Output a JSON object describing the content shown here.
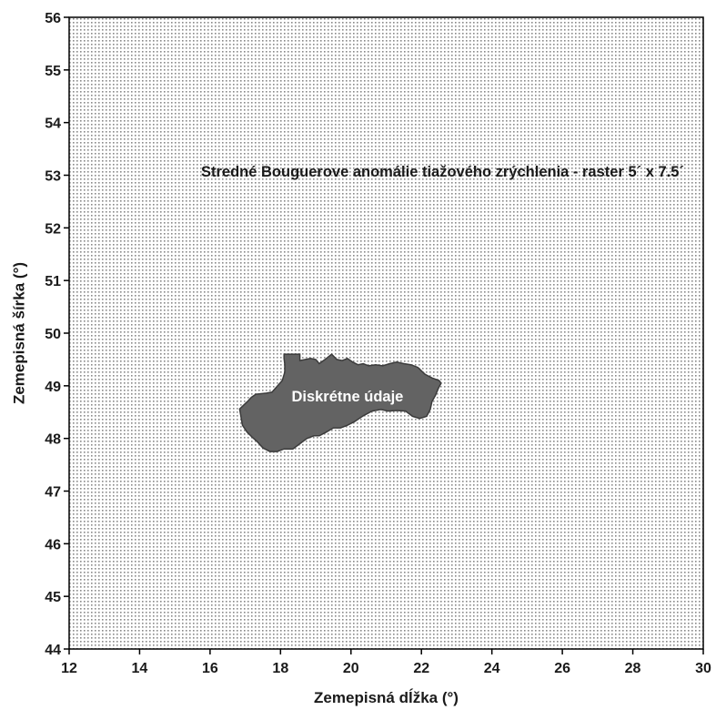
{
  "chart_data": {
    "type": "map",
    "xlabel": "Zemepisná dĺžka (°)",
    "ylabel": "Zemepisná šírka (°)",
    "xlim": [
      12,
      30
    ],
    "ylim": [
      44,
      56
    ],
    "x_ticks": [
      "12",
      "14",
      "16",
      "18",
      "20",
      "22",
      "24",
      "26",
      "28",
      "30"
    ],
    "y_ticks": [
      "44",
      "45",
      "46",
      "47",
      "48",
      "49",
      "50",
      "51",
      "52",
      "53",
      "54",
      "55",
      "56"
    ],
    "grid": "dotted raster fill over whole extent",
    "annotations": {
      "raster": "Stredné Bouguerove anomálie tiažového zrýchlenia - raster 5´ x 7.5´",
      "region": "Diskrétne údaje"
    },
    "raster_label_position": [
      22.6,
      53.05
    ],
    "region_label_position": [
      19.9,
      48.78
    ],
    "region_outline": [
      [
        16.84,
        48.56
      ],
      [
        16.95,
        48.63
      ],
      [
        17.06,
        48.7
      ],
      [
        17.17,
        48.78
      ],
      [
        17.3,
        48.84
      ],
      [
        17.45,
        48.85
      ],
      [
        17.6,
        48.86
      ],
      [
        17.76,
        48.88
      ],
      [
        17.92,
        49.0
      ],
      [
        18.05,
        49.1
      ],
      [
        18.12,
        49.26
      ],
      [
        18.12,
        49.41
      ],
      [
        18.1,
        49.52
      ],
      [
        18.1,
        49.6
      ],
      [
        18.55,
        49.6
      ],
      [
        18.55,
        49.48
      ],
      [
        18.85,
        49.52
      ],
      [
        19.0,
        49.5
      ],
      [
        19.1,
        49.42
      ],
      [
        19.3,
        49.52
      ],
      [
        19.45,
        49.6
      ],
      [
        19.6,
        49.5
      ],
      [
        19.75,
        49.48
      ],
      [
        19.9,
        49.52
      ],
      [
        20.05,
        49.45
      ],
      [
        20.2,
        49.4
      ],
      [
        20.35,
        49.42
      ],
      [
        20.5,
        49.38
      ],
      [
        20.7,
        49.4
      ],
      [
        20.9,
        49.38
      ],
      [
        21.1,
        49.42
      ],
      [
        21.3,
        49.45
      ],
      [
        21.5,
        49.42
      ],
      [
        21.7,
        49.4
      ],
      [
        21.9,
        49.35
      ],
      [
        22.1,
        49.22
      ],
      [
        22.3,
        49.15
      ],
      [
        22.5,
        49.1
      ],
      [
        22.56,
        49.05
      ],
      [
        22.48,
        48.95
      ],
      [
        22.4,
        48.82
      ],
      [
        22.3,
        48.7
      ],
      [
        22.25,
        48.55
      ],
      [
        22.15,
        48.42
      ],
      [
        21.95,
        48.38
      ],
      [
        21.75,
        48.42
      ],
      [
        21.55,
        48.52
      ],
      [
        21.3,
        48.53
      ],
      [
        21.05,
        48.52
      ],
      [
        20.85,
        48.55
      ],
      [
        20.6,
        48.52
      ],
      [
        20.35,
        48.43
      ],
      [
        20.1,
        48.32
      ],
      [
        19.9,
        48.25
      ],
      [
        19.7,
        48.2
      ],
      [
        19.5,
        48.2
      ],
      [
        19.3,
        48.12
      ],
      [
        19.1,
        48.05
      ],
      [
        18.95,
        48.05
      ],
      [
        18.75,
        48.0
      ],
      [
        18.55,
        47.9
      ],
      [
        18.35,
        47.8
      ],
      [
        18.1,
        47.8
      ],
      [
        17.9,
        47.75
      ],
      [
        17.7,
        47.75
      ],
      [
        17.5,
        47.82
      ],
      [
        17.35,
        47.93
      ],
      [
        17.2,
        48.02
      ],
      [
        17.05,
        48.12
      ],
      [
        16.92,
        48.25
      ],
      [
        16.88,
        48.4
      ]
    ]
  }
}
